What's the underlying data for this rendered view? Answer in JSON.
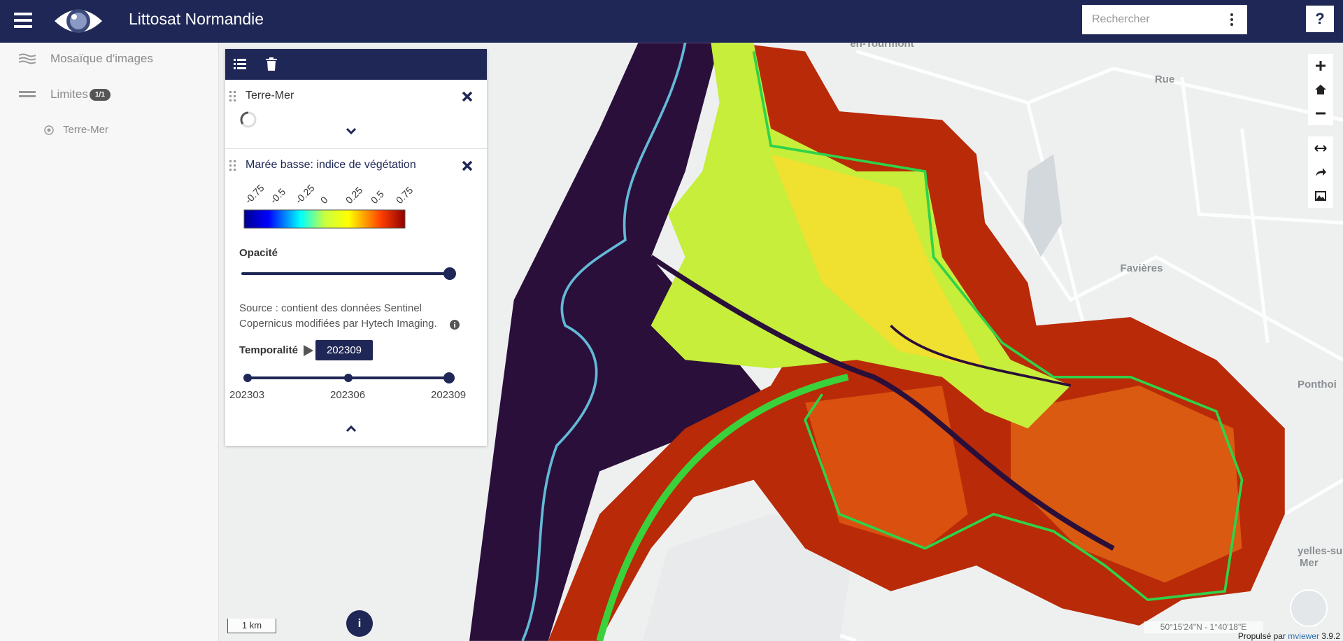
{
  "header": {
    "title": "Littosat Normandie",
    "search_placeholder": "Rechercher",
    "help": "?"
  },
  "sidebar": {
    "items": [
      {
        "label": "Mosaïque d'images"
      },
      {
        "label": "Limites",
        "badge": "1/1"
      },
      {
        "label": "Terre-Mer"
      }
    ]
  },
  "layers": [
    {
      "title": "Terre-Mer"
    },
    {
      "title": "Marée basse: indice de végétation",
      "legend_ticks": [
        "-0.75",
        "-0.5",
        "-0.25",
        "0",
        "0.25",
        "0.5",
        "0.75"
      ],
      "opacity_label": "Opacité",
      "source": [
        "Source : contient des données Sentinel",
        "Copernicus modifiées par Hytech Imaging."
      ],
      "time_label": "Temporalité",
      "time_current": "202309",
      "time_steps": [
        "202303",
        "202306",
        "202309"
      ]
    }
  ],
  "map": {
    "place_labels": [
      "en-Tourmont",
      "Rue",
      "Favières",
      "Ponthoi",
      "yelles-sur-",
      "Mer"
    ],
    "scale": "1 km",
    "info": "i",
    "coordinates": "50°15'24\"N - 1°40'18\"E",
    "credit": {
      "prefix": "Propulsé par",
      "link": "mviewer",
      "version": "3.9.2"
    }
  }
}
